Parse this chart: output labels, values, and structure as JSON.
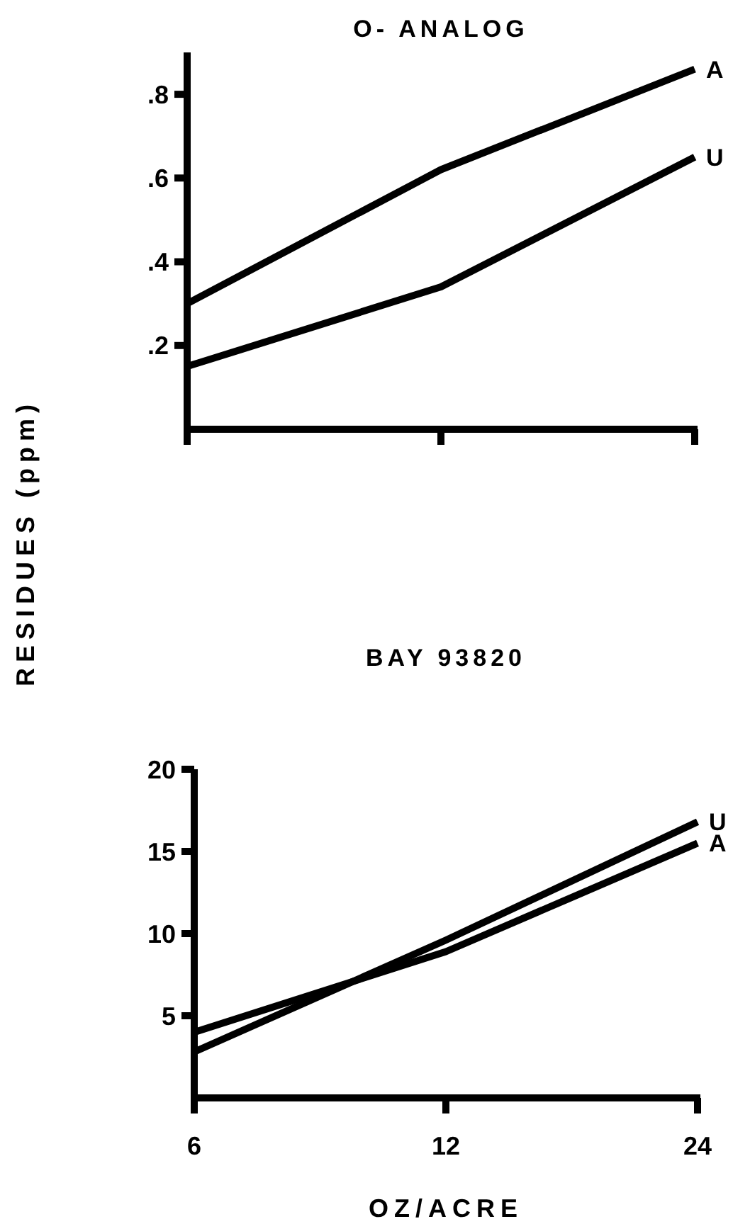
{
  "chart_data": [
    {
      "type": "line",
      "title": "O- ANALOG",
      "ylabel": "RESIDUES (ppm)",
      "categories": [
        "6",
        "12",
        "24"
      ],
      "ylim": [
        0,
        0.9
      ],
      "yticks": [
        {
          "value": 0.2,
          "label": ".2"
        },
        {
          "value": 0.4,
          "label": ".4"
        },
        {
          "value": 0.6,
          "label": ".6"
        },
        {
          "value": 0.8,
          "label": ".8"
        }
      ],
      "tick_labels": "y",
      "grid": false,
      "legend": false,
      "marker": "none",
      "line_style": "solid",
      "series": [
        {
          "name": "A",
          "color": "#000000",
          "values": [
            0.3,
            0.62,
            0.86
          ]
        },
        {
          "name": "U",
          "color": "#000000",
          "values": [
            0.15,
            0.34,
            0.65
          ]
        }
      ]
    },
    {
      "type": "line",
      "title": "BAY 93820",
      "xlabel": "OZ/ACRE",
      "categories": [
        "6",
        "12",
        "24"
      ],
      "ylim": [
        0,
        20
      ],
      "yticks": [
        5,
        10,
        15,
        20
      ],
      "grid": false,
      "legend": false,
      "marker": "none",
      "line_style": "solid",
      "series": [
        {
          "name": "U",
          "color": "#000000",
          "values": [
            2.8,
            9.6,
            16.8
          ]
        },
        {
          "name": "A",
          "color": "#000000",
          "values": [
            4.0,
            8.9,
            15.5
          ]
        }
      ]
    }
  ]
}
